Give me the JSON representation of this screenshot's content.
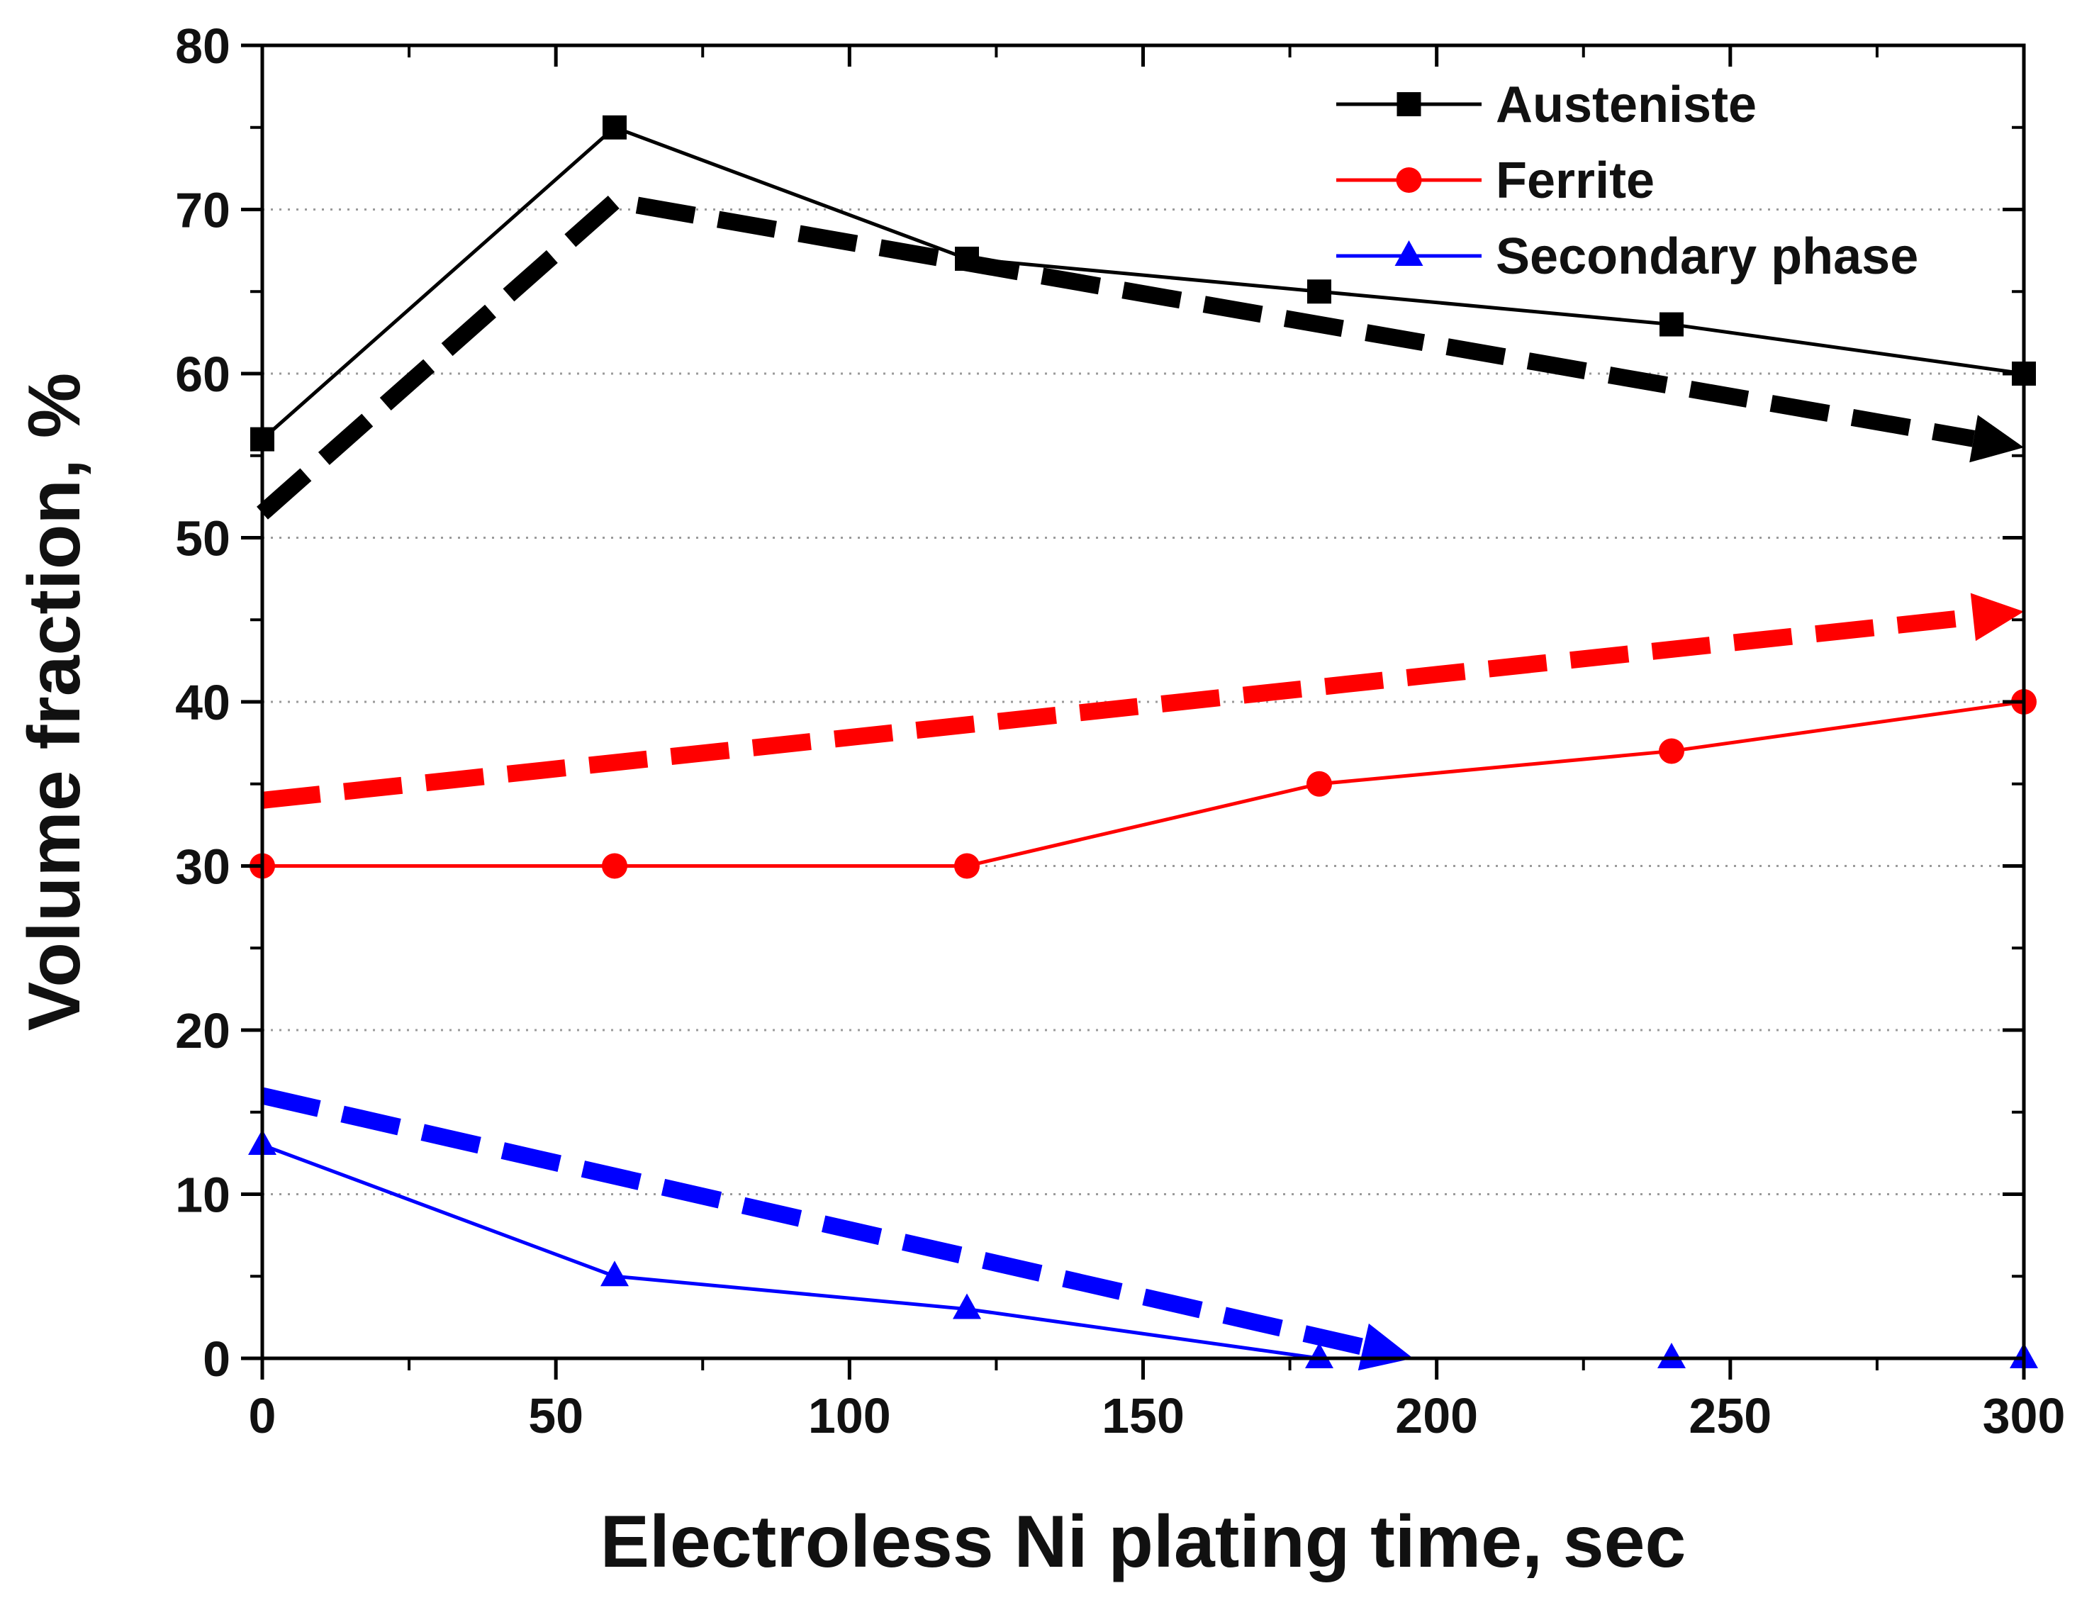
{
  "chart_data": {
    "type": "line",
    "xlabel": "Electroless Ni plating time, sec",
    "ylabel": "Volume fraction, %",
    "xlim": [
      0,
      300
    ],
    "ylim": [
      0,
      80
    ],
    "xticks": [
      0,
      50,
      100,
      150,
      200,
      250,
      300
    ],
    "yticks": [
      0,
      10,
      20,
      30,
      40,
      50,
      60,
      70,
      80
    ],
    "grid": "horizontal dotted",
    "legend_position": "top-right",
    "x": [
      0,
      60,
      120,
      180,
      240,
      300
    ],
    "series": [
      {
        "name": "Austeniste",
        "marker": "square",
        "color": "#000000",
        "values": [
          56,
          75,
          67,
          65,
          63,
          60
        ]
      },
      {
        "name": "Ferrite",
        "marker": "circle",
        "color": "#ff0000",
        "values": [
          30,
          30,
          30,
          35,
          37,
          40
        ]
      },
      {
        "name": "Secondary phase",
        "marker": "triangle",
        "color": "#0000ff",
        "values": [
          13,
          5,
          3,
          0,
          0,
          0
        ]
      }
    ],
    "trend_arrows": [
      {
        "color": "#000000",
        "points": [
          [
            0,
            51.5
          ],
          [
            60,
            70.5
          ],
          [
            300,
            55.5
          ]
        ]
      },
      {
        "color": "#ff0000",
        "points": [
          [
            0,
            34
          ],
          [
            300,
            45.5
          ]
        ]
      },
      {
        "color": "#0000ff",
        "points": [
          [
            0,
            16
          ],
          [
            196,
            0
          ]
        ]
      }
    ]
  }
}
